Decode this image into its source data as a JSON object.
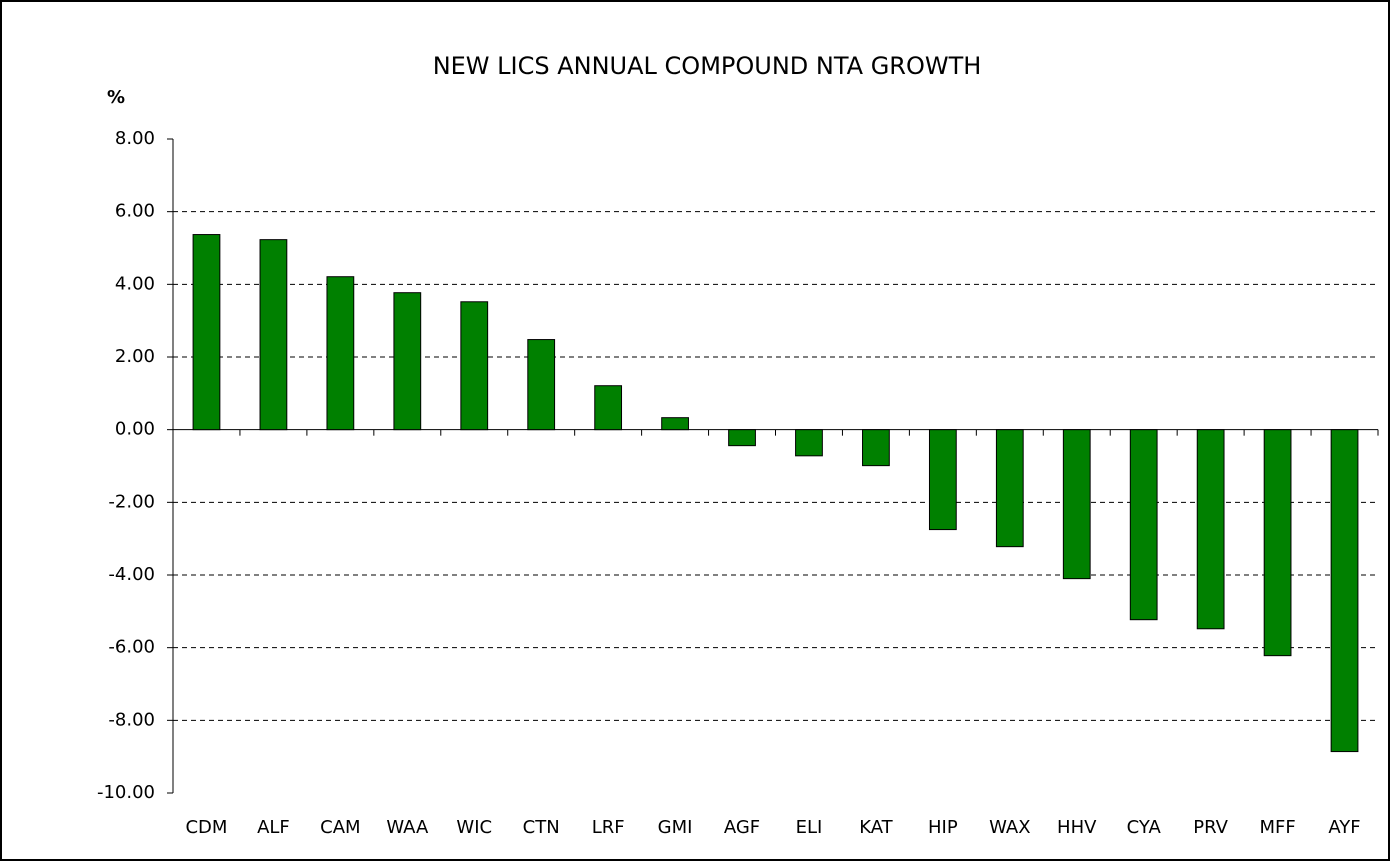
{
  "chart_data": {
    "type": "bar",
    "title": "NEW LICS ANNUAL COMPOUND NTA GROWTH",
    "y_label": "%",
    "categories": [
      "CDM",
      "ALF",
      "CAM",
      "WAA",
      "WIC",
      "CTN",
      "LRF",
      "GMI",
      "AGF",
      "ELI",
      "KAT",
      "HIP",
      "WAX",
      "HHV",
      "CYA",
      "PRV",
      "MFF",
      "AYF"
    ],
    "values": [
      5.37,
      5.23,
      4.21,
      3.77,
      3.52,
      2.48,
      1.21,
      0.33,
      -0.44,
      -0.72,
      -0.99,
      -2.75,
      -3.22,
      -4.1,
      -5.23,
      -5.48,
      -6.22,
      -8.86
    ],
    "color": "#008000",
    "ylim": [
      -10,
      8
    ],
    "yticks": [
      {
        "value": 8,
        "label": "8.00"
      },
      {
        "value": 6,
        "label": "6.00"
      },
      {
        "value": 4,
        "label": "4.00"
      },
      {
        "value": 2,
        "label": "2.00"
      },
      {
        "value": 0,
        "label": "0.00"
      },
      {
        "value": -2,
        "label": "-2.00"
      },
      {
        "value": -4,
        "label": "-4.00"
      },
      {
        "value": -6,
        "label": "-6.00"
      },
      {
        "value": -8,
        "label": "-8.00"
      },
      {
        "value": -10,
        "label": "-10.00"
      }
    ],
    "grid": true
  }
}
